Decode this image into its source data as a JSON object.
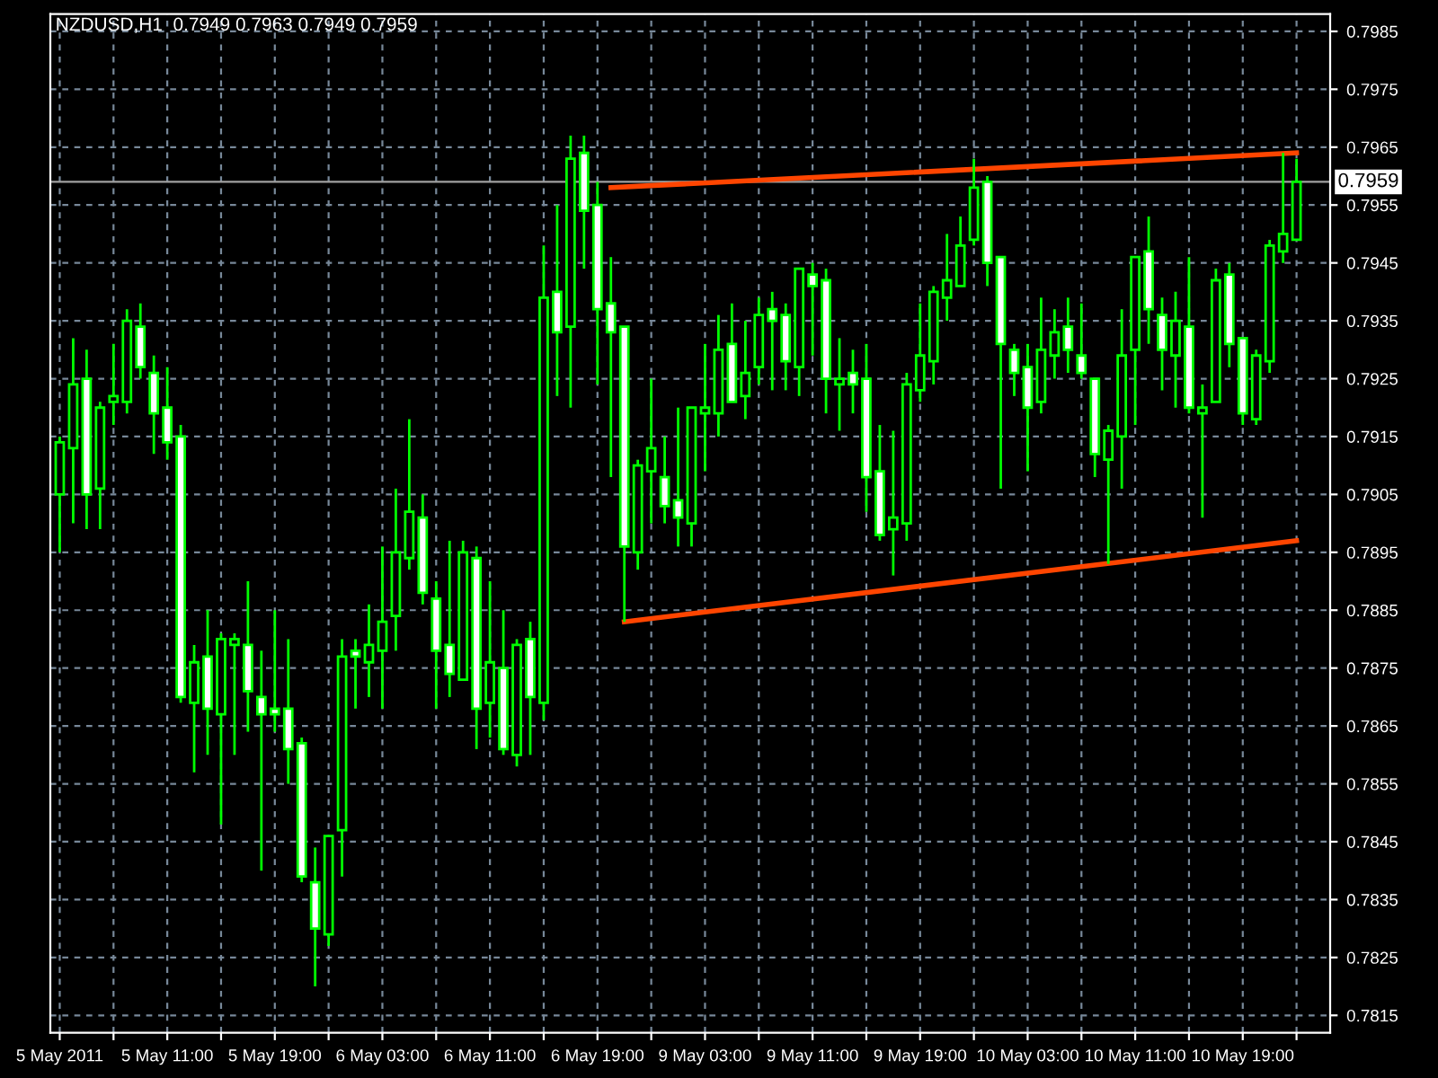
{
  "chart_data": {
    "type": "candlestick",
    "title": "NZDUSD,H1  0.7949 0.7963 0.7949 0.7959",
    "categories": [
      "5 May 2011",
      null,
      null,
      null,
      null,
      null,
      null,
      null,
      "5 May 11:00",
      null,
      null,
      null,
      null,
      null,
      null,
      null,
      "5 May 19:00",
      null,
      null,
      null,
      null,
      null,
      null,
      null,
      "6 May 03:00",
      null,
      null,
      null,
      null,
      null,
      null,
      null,
      "6 May 11:00",
      null,
      null,
      null,
      null,
      null,
      null,
      null,
      "6 May 19:00",
      null,
      null,
      null,
      null,
      null,
      null,
      null,
      "9 May 03:00",
      null,
      null,
      null,
      null,
      null,
      null,
      null,
      "9 May 11:00",
      null,
      null,
      null,
      null,
      null,
      null,
      null,
      "9 May 19:00",
      null,
      null,
      null,
      null,
      null,
      null,
      null,
      "10 May 03:00",
      null,
      null,
      null,
      null,
      null,
      null,
      null,
      "10 May 11:00",
      null,
      null,
      null,
      null,
      null,
      null,
      null,
      "10 May 19:00",
      null,
      null,
      null,
      null
    ],
    "color": "#00ff00",
    "ohlc": [
      [
        0.7905,
        0.7915,
        0.7895,
        0.7914
      ],
      [
        0.7913,
        0.7932,
        0.79,
        0.7924
      ],
      [
        0.7925,
        0.793,
        0.7899,
        0.7905
      ],
      [
        0.7906,
        0.7921,
        0.7899,
        0.792
      ],
      [
        0.7921,
        0.7931,
        0.7917,
        0.7922
      ],
      [
        0.7921,
        0.7937,
        0.7919,
        0.7935
      ],
      [
        0.7934,
        0.7938,
        0.7925,
        0.7927
      ],
      [
        0.7926,
        0.7929,
        0.7912,
        0.7919
      ],
      [
        0.792,
        0.7927,
        0.7911,
        0.7914
      ],
      [
        0.7915,
        0.7917,
        0.7869,
        0.787
      ],
      [
        0.7869,
        0.7879,
        0.7857,
        0.7876
      ],
      [
        0.7877,
        0.7885,
        0.786,
        0.7868
      ],
      [
        0.7867,
        0.7881,
        0.7848,
        0.788
      ],
      [
        0.7879,
        0.7881,
        0.786,
        0.788
      ],
      [
        0.7879,
        0.789,
        0.7864,
        0.7871
      ],
      [
        0.787,
        0.7878,
        0.784,
        0.7867
      ],
      [
        0.7868,
        0.7885,
        0.7864,
        0.7867
      ],
      [
        0.7868,
        0.788,
        0.7855,
        0.7861
      ],
      [
        0.7862,
        0.7863,
        0.7838,
        0.7839
      ],
      [
        0.7838,
        0.7844,
        0.782,
        0.783
      ],
      [
        0.7829,
        0.7846,
        0.7827,
        0.7846
      ],
      [
        0.7847,
        0.788,
        0.7839,
        0.7877
      ],
      [
        0.7878,
        0.788,
        0.7868,
        0.7877
      ],
      [
        0.7876,
        0.7886,
        0.787,
        0.7879
      ],
      [
        0.7878,
        0.7896,
        0.7868,
        0.7883
      ],
      [
        0.7884,
        0.7906,
        0.7878,
        0.7895
      ],
      [
        0.7894,
        0.7918,
        0.7892,
        0.7902
      ],
      [
        0.7901,
        0.7905,
        0.7886,
        0.7888
      ],
      [
        0.7887,
        0.789,
        0.7868,
        0.7878
      ],
      [
        0.7879,
        0.7897,
        0.787,
        0.7874
      ],
      [
        0.7873,
        0.7897,
        0.7873,
        0.7895
      ],
      [
        0.7894,
        0.7896,
        0.7861,
        0.7868
      ],
      [
        0.7869,
        0.789,
        0.7863,
        0.7876
      ],
      [
        0.7875,
        0.7885,
        0.786,
        0.7861
      ],
      [
        0.786,
        0.788,
        0.7858,
        0.7879
      ],
      [
        0.788,
        0.7883,
        0.786,
        0.787
      ],
      [
        0.7869,
        0.7948,
        0.7866,
        0.7939
      ],
      [
        0.794,
        0.7955,
        0.7922,
        0.7933
      ],
      [
        0.7934,
        0.7967,
        0.792,
        0.7963
      ],
      [
        0.7964,
        0.7967,
        0.7944,
        0.7954
      ],
      [
        0.7955,
        0.7959,
        0.7924,
        0.7937
      ],
      [
        0.7938,
        0.7946,
        0.7908,
        0.7933
      ],
      [
        0.7934,
        0.7934,
        0.7883,
        0.7896
      ],
      [
        0.7895,
        0.7911,
        0.7892,
        0.791
      ],
      [
        0.7909,
        0.7925,
        0.79,
        0.7913
      ],
      [
        0.7908,
        0.7915,
        0.79,
        0.7903
      ],
      [
        0.7904,
        0.792,
        0.7896,
        0.7901
      ],
      [
        0.79,
        0.792,
        0.7896,
        0.792
      ],
      [
        0.7919,
        0.7931,
        0.7909,
        0.792
      ],
      [
        0.7919,
        0.7936,
        0.7915,
        0.793
      ],
      [
        0.7931,
        0.7938,
        0.7921,
        0.7921
      ],
      [
        0.7922,
        0.7935,
        0.7918,
        0.7926
      ],
      [
        0.7927,
        0.7939,
        0.7924,
        0.7936
      ],
      [
        0.7937,
        0.794,
        0.7923,
        0.7935
      ],
      [
        0.7936,
        0.7938,
        0.7923,
        0.7928
      ],
      [
        0.7927,
        0.7944,
        0.7922,
        0.7944
      ],
      [
        0.7943,
        0.7945,
        0.7929,
        0.7941
      ],
      [
        0.7942,
        0.7944,
        0.7919,
        0.7925
      ],
      [
        0.7924,
        0.7932,
        0.7916,
        0.7925
      ],
      [
        0.7926,
        0.793,
        0.7919,
        0.7924
      ],
      [
        0.7925,
        0.7931,
        0.7902,
        0.7908
      ],
      [
        0.7909,
        0.7917,
        0.7897,
        0.7898
      ],
      [
        0.7899,
        0.7916,
        0.7891,
        0.7901
      ],
      [
        0.79,
        0.7926,
        0.7897,
        0.7924
      ],
      [
        0.7923,
        0.7938,
        0.7921,
        0.7929
      ],
      [
        0.7928,
        0.7941,
        0.7924,
        0.794
      ],
      [
        0.7939,
        0.795,
        0.7935,
        0.7942
      ],
      [
        0.7941,
        0.7953,
        0.7941,
        0.7948
      ],
      [
        0.7949,
        0.7963,
        0.7948,
        0.7958
      ],
      [
        0.7959,
        0.796,
        0.7941,
        0.7945
      ],
      [
        0.7946,
        0.7946,
        0.7906,
        0.7931
      ],
      [
        0.793,
        0.7931,
        0.7922,
        0.7926
      ],
      [
        0.7927,
        0.7931,
        0.7909,
        0.792
      ],
      [
        0.7921,
        0.7939,
        0.7919,
        0.793
      ],
      [
        0.7929,
        0.7937,
        0.7925,
        0.7933
      ],
      [
        0.7934,
        0.7939,
        0.7926,
        0.793
      ],
      [
        0.7929,
        0.7938,
        0.7925,
        0.7926
      ],
      [
        0.7925,
        0.7925,
        0.7908,
        0.7912
      ],
      [
        0.7911,
        0.7917,
        0.7893,
        0.7916
      ],
      [
        0.7915,
        0.7937,
        0.7906,
        0.7929
      ],
      [
        0.793,
        0.7946,
        0.7917,
        0.7946
      ],
      [
        0.7947,
        0.7953,
        0.7931,
        0.7937
      ],
      [
        0.7936,
        0.7939,
        0.7923,
        0.793
      ],
      [
        0.7929,
        0.794,
        0.792,
        0.7935
      ],
      [
        0.7934,
        0.7946,
        0.7919,
        0.792
      ],
      [
        0.7919,
        0.7924,
        0.7901,
        0.792
      ],
      [
        0.7921,
        0.7944,
        0.7921,
        0.7942
      ],
      [
        0.7943,
        0.7945,
        0.7927,
        0.7931
      ],
      [
        0.7932,
        0.7932,
        0.7917,
        0.7919
      ],
      [
        0.7918,
        0.793,
        0.7917,
        0.7929
      ],
      [
        0.7928,
        0.7949,
        0.7926,
        0.7948
      ],
      [
        0.7947,
        0.7964,
        0.7945,
        0.795
      ],
      [
        0.7949,
        0.7963,
        0.7949,
        0.7959
      ]
    ],
    "series": [
      {
        "type": "line",
        "color": "#ff4500",
        "values": [
          null,
          null,
          null,
          null,
          null,
          null,
          null,
          null,
          null,
          null,
          null,
          null,
          null,
          null,
          null,
          null,
          null,
          null,
          null,
          null,
          null,
          null,
          null,
          null,
          null,
          null,
          null,
          null,
          null,
          null,
          null,
          null,
          null,
          null,
          null,
          null,
          null,
          null,
          null,
          null,
          null,
          0.7958,
          null,
          null,
          null,
          null,
          null,
          null,
          null,
          null,
          null,
          null,
          null,
          null,
          null,
          null,
          null,
          null,
          null,
          null,
          null,
          null,
          null,
          null,
          null,
          null,
          null,
          null,
          null,
          null,
          null,
          null,
          null,
          null,
          null,
          null,
          null,
          null,
          null,
          null,
          null,
          null,
          null,
          null,
          null,
          null,
          null,
          null,
          null,
          null,
          null,
          null,
          0.7964
        ]
      },
      {
        "type": "line",
        "color": "#ff4500",
        "values": [
          null,
          null,
          null,
          null,
          null,
          null,
          null,
          null,
          null,
          null,
          null,
          null,
          null,
          null,
          null,
          null,
          null,
          null,
          null,
          null,
          null,
          null,
          null,
          null,
          null,
          null,
          null,
          null,
          null,
          null,
          null,
          null,
          null,
          null,
          null,
          null,
          null,
          null,
          null,
          null,
          null,
          null,
          0.7883,
          null,
          null,
          null,
          null,
          null,
          null,
          null,
          null,
          null,
          null,
          null,
          null,
          null,
          null,
          null,
          null,
          null,
          null,
          null,
          null,
          null,
          null,
          null,
          null,
          null,
          null,
          null,
          null,
          null,
          null,
          null,
          null,
          null,
          null,
          null,
          null,
          null,
          null,
          null,
          null,
          null,
          null,
          null,
          null,
          null,
          null,
          null,
          null,
          null,
          0.7897
        ]
      }
    ],
    "ylim": [
      0.7812,
      0.7988
    ],
    "yticks": [
      0.7815,
      0.7825,
      0.7835,
      0.7845,
      0.7855,
      0.7865,
      0.7875,
      0.7885,
      0.7895,
      0.7905,
      0.7915,
      0.7925,
      0.7935,
      0.7945,
      0.7955,
      0.7965,
      0.7975,
      0.7985
    ],
    "ref_lines": [
      {
        "axis": "y",
        "value": 0.7959,
        "label": "0.7959",
        "color": "#a0a0a0"
      }
    ],
    "grid": true
  }
}
